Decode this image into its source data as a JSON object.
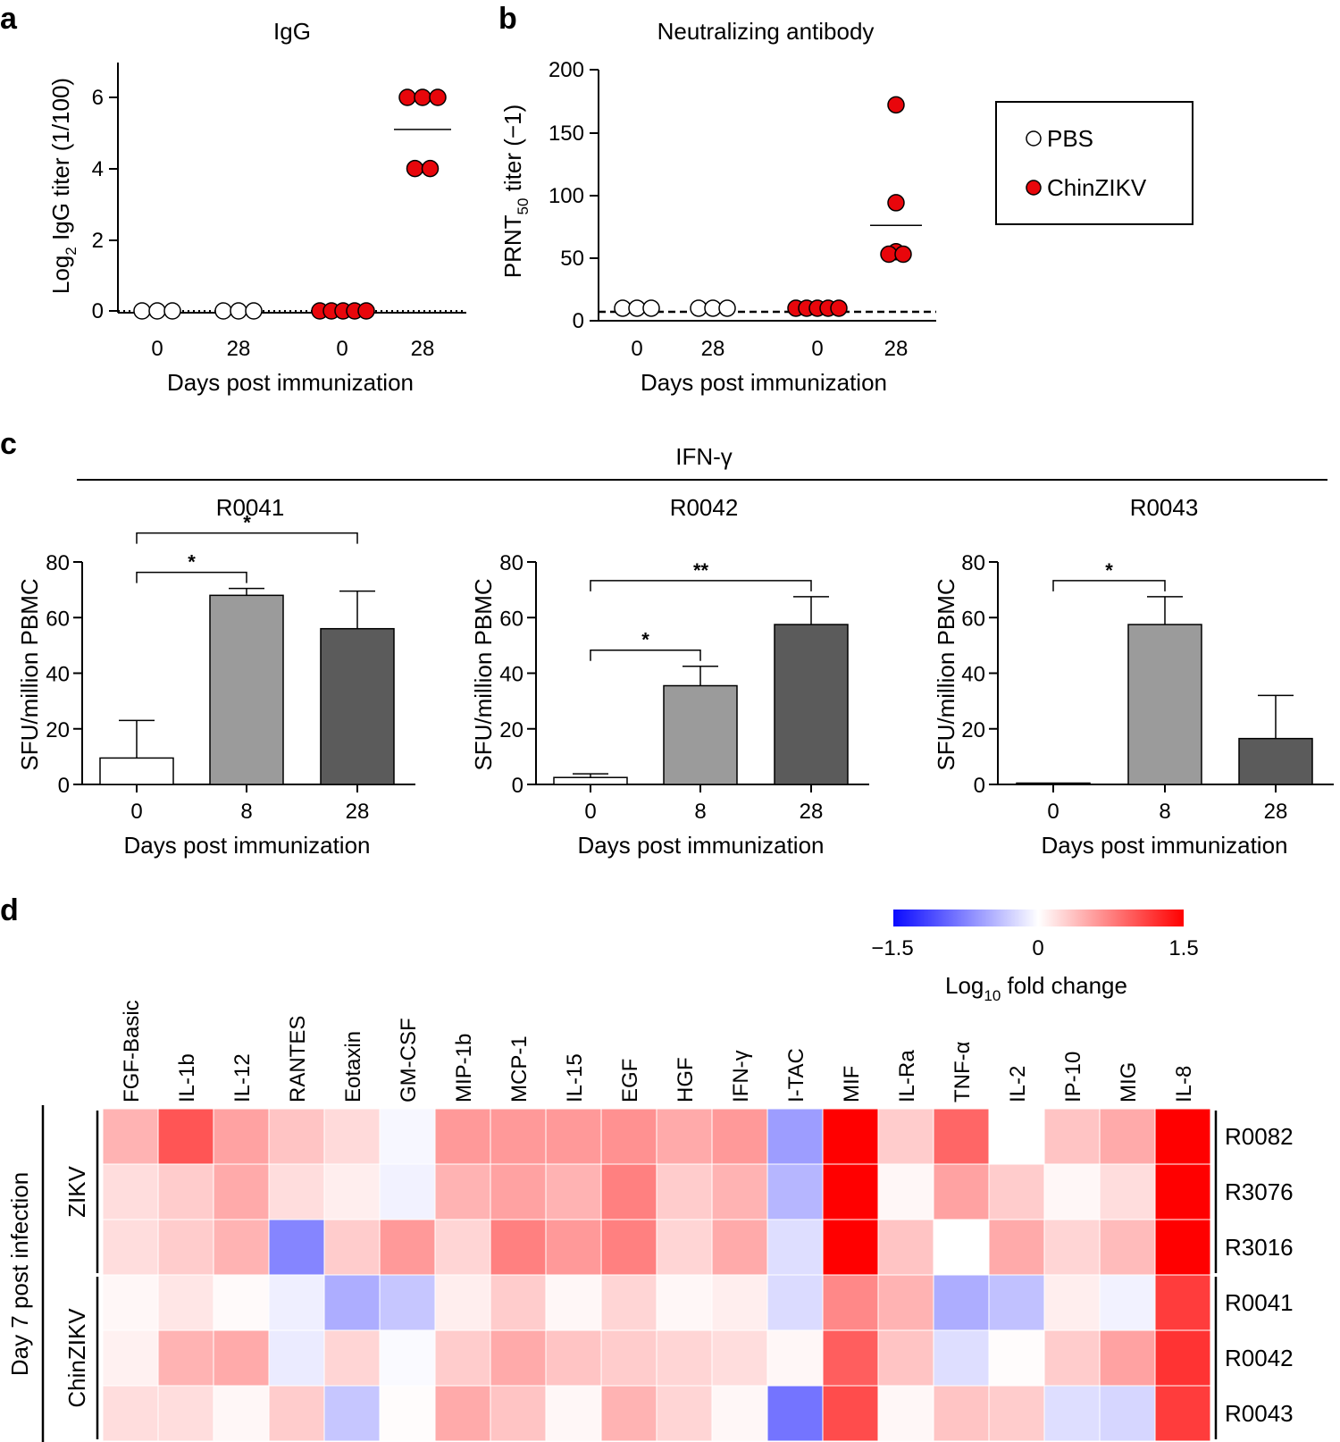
{
  "colors": {
    "pbs_fill": "#ffffff",
    "chinzikv_fill": "#e8060b",
    "bar_day0": "#ffffff",
    "bar_day8": "#9b9b9b",
    "bar_day28": "#5b5b5b",
    "heat_low": "#0a0aff",
    "heat_mid": "#ffffff",
    "heat_high": "#ff0000"
  },
  "legend": {
    "items": [
      "PBS",
      "ChinZIKV"
    ]
  },
  "panels": {
    "a": {
      "label": "a"
    },
    "b": {
      "label": "b"
    },
    "c": {
      "label": "c",
      "header": "IFN-γ"
    },
    "d": {
      "label": "d"
    }
  },
  "chart_data": [
    {
      "id": "a",
      "type": "scatter",
      "title": "IgG",
      "xlabel": "Days post immunization",
      "ylabel": "Log₂ IgG titer (1/100)",
      "ylabel_main": "Log",
      "ylabel_sub": "2",
      "ylabel_rest": " IgG titer (1/100)",
      "ylim": [
        0,
        6.8
      ],
      "yticks": [
        "0",
        "2",
        "4",
        "6"
      ],
      "groups": [
        {
          "group": "PBS",
          "day": "0",
          "values": [
            0,
            0,
            0
          ]
        },
        {
          "group": "PBS",
          "day": "28",
          "values": [
            0,
            0,
            0
          ]
        },
        {
          "group": "ChinZIKV",
          "day": "0",
          "values": [
            0,
            0,
            0,
            0,
            0
          ]
        },
        {
          "group": "ChinZIKV",
          "day": "28",
          "values": [
            6,
            6,
            6,
            4,
            4
          ]
        }
      ],
      "means": [
        {
          "day": "28",
          "group": "ChinZIKV",
          "value": 5.1
        }
      ],
      "baseline": {
        "value": 0,
        "style": "dotted"
      }
    },
    {
      "id": "b",
      "type": "scatter",
      "title": "Neutralizing antibody",
      "xlabel": "Days post immunization",
      "ylabel": "PRNT₅₀ titer (−1)",
      "ylabel_main": "PRNT",
      "ylabel_sub": "50",
      "ylabel_rest": " titer (−1)",
      "ylim": [
        0,
        200
      ],
      "yticks": [
        "0",
        "50",
        "100",
        "150",
        "200"
      ],
      "groups": [
        {
          "group": "PBS",
          "day": "0",
          "values": [
            10,
            10,
            10
          ]
        },
        {
          "group": "PBS",
          "day": "28",
          "values": [
            10,
            10,
            10
          ]
        },
        {
          "group": "ChinZIKV",
          "day": "0",
          "values": [
            10,
            10,
            10,
            10,
            10
          ]
        },
        {
          "group": "ChinZIKV",
          "day": "28",
          "values": [
            172,
            94,
            55,
            53,
            53
          ]
        }
      ],
      "means": [
        {
          "day": "28",
          "group": "ChinZIKV",
          "value": 76
        }
      ],
      "baseline": {
        "value": 10,
        "style": "dashed"
      }
    },
    {
      "id": "c1",
      "type": "bar",
      "title": "R0041",
      "xlabel": "Days post immunization",
      "ylabel": "SFU/million PBMC",
      "categories": [
        "0",
        "8",
        "28"
      ],
      "values": [
        9.5,
        68,
        56
      ],
      "errors": [
        13.5,
        2.5,
        13.5
      ],
      "ylim": [
        0,
        80
      ],
      "yticks": [
        "0",
        "20",
        "40",
        "60",
        "80"
      ],
      "significance": [
        {
          "from": 0,
          "to": 1,
          "label": "*"
        },
        {
          "from": 0,
          "to": 2,
          "label": "*"
        }
      ]
    },
    {
      "id": "c2",
      "type": "bar",
      "title": "R0042",
      "xlabel": "Days post immunization",
      "ylabel": "SFU/million PBMC",
      "categories": [
        "0",
        "8",
        "28"
      ],
      "values": [
        2.5,
        35.5,
        57.5
      ],
      "errors": [
        1.3,
        7,
        10
      ],
      "ylim": [
        0,
        80
      ],
      "yticks": [
        "0",
        "20",
        "40",
        "60",
        "80"
      ],
      "significance": [
        {
          "from": 0,
          "to": 1,
          "label": "*"
        },
        {
          "from": 0,
          "to": 2,
          "label": "**"
        }
      ]
    },
    {
      "id": "c3",
      "type": "bar",
      "title": "R0043",
      "xlabel": "Days post immunization",
      "ylabel": "SFU/million PBMC",
      "categories": [
        "0",
        "8",
        "28"
      ],
      "values": [
        0,
        57.5,
        16.5
      ],
      "errors": [
        0,
        10,
        15.5
      ],
      "ylim": [
        0,
        80
      ],
      "yticks": [
        "0",
        "20",
        "40",
        "60",
        "80"
      ],
      "significance": [
        {
          "from": 0,
          "to": 1,
          "label": "*"
        }
      ]
    },
    {
      "id": "d",
      "type": "heatmap",
      "colorbar": {
        "min": -1.5,
        "max": 1.5,
        "ticks": [
          "−1.5",
          "0",
          "1.5"
        ],
        "label_main": "Log",
        "label_sub": "10",
        "label_rest": " fold change"
      },
      "columns": [
        "FGF-Basic",
        "IL-1b",
        "IL-12",
        "RANTES",
        "Eotaxin",
        "GM-CSF",
        "MIP-1b",
        "MCP-1",
        "IL-15",
        "EGF",
        "HGF",
        "IFN-γ",
        "I-TAC",
        "MIF",
        "IL-Ra",
        "TNF-α",
        "IL-2",
        "IP-10",
        "MIG",
        "IL-8"
      ],
      "rows": [
        "R0082",
        "R3076",
        "R3016",
        "R0041",
        "R0042",
        "R0043"
      ],
      "row_groups": [
        {
          "label": "ZIKV",
          "rows": [
            0,
            2
          ]
        },
        {
          "label": "ChinZIKV",
          "rows": [
            3,
            5
          ]
        }
      ],
      "outer_label": "Day 7 post infection",
      "values": [
        [
          0.45,
          1.0,
          0.55,
          0.35,
          0.22,
          -0.05,
          0.6,
          0.6,
          0.6,
          0.65,
          0.5,
          0.6,
          -0.6,
          1.5,
          0.3,
          0.9,
          0.0,
          0.35,
          0.5,
          1.5
        ],
        [
          0.2,
          0.3,
          0.5,
          0.2,
          0.1,
          -0.08,
          0.45,
          0.55,
          0.45,
          0.75,
          0.3,
          0.45,
          -0.45,
          1.5,
          0.05,
          0.55,
          0.3,
          0.05,
          0.2,
          1.5
        ],
        [
          0.2,
          0.3,
          0.45,
          -0.75,
          0.3,
          0.6,
          0.25,
          0.75,
          0.6,
          0.75,
          0.25,
          0.5,
          -0.2,
          1.5,
          0.35,
          0.0,
          0.5,
          0.25,
          0.4,
          1.5
        ],
        [
          0.05,
          0.15,
          0.03,
          -0.1,
          -0.5,
          -0.35,
          0.1,
          0.3,
          0.05,
          0.25,
          0.05,
          0.1,
          -0.22,
          0.7,
          0.45,
          -0.5,
          -0.38,
          0.1,
          -0.08,
          1.15
        ],
        [
          0.08,
          0.45,
          0.5,
          -0.12,
          0.25,
          -0.03,
          0.3,
          0.5,
          0.35,
          0.3,
          0.25,
          0.2,
          0.05,
          0.95,
          0.35,
          -0.2,
          0.02,
          0.3,
          0.55,
          1.2
        ],
        [
          0.2,
          0.2,
          0.05,
          0.3,
          -0.35,
          0.02,
          0.5,
          0.35,
          0.05,
          0.45,
          0.25,
          0.05,
          -0.85,
          1.05,
          0.05,
          0.35,
          0.3,
          -0.2,
          -0.25,
          1.15
        ]
      ]
    }
  ]
}
